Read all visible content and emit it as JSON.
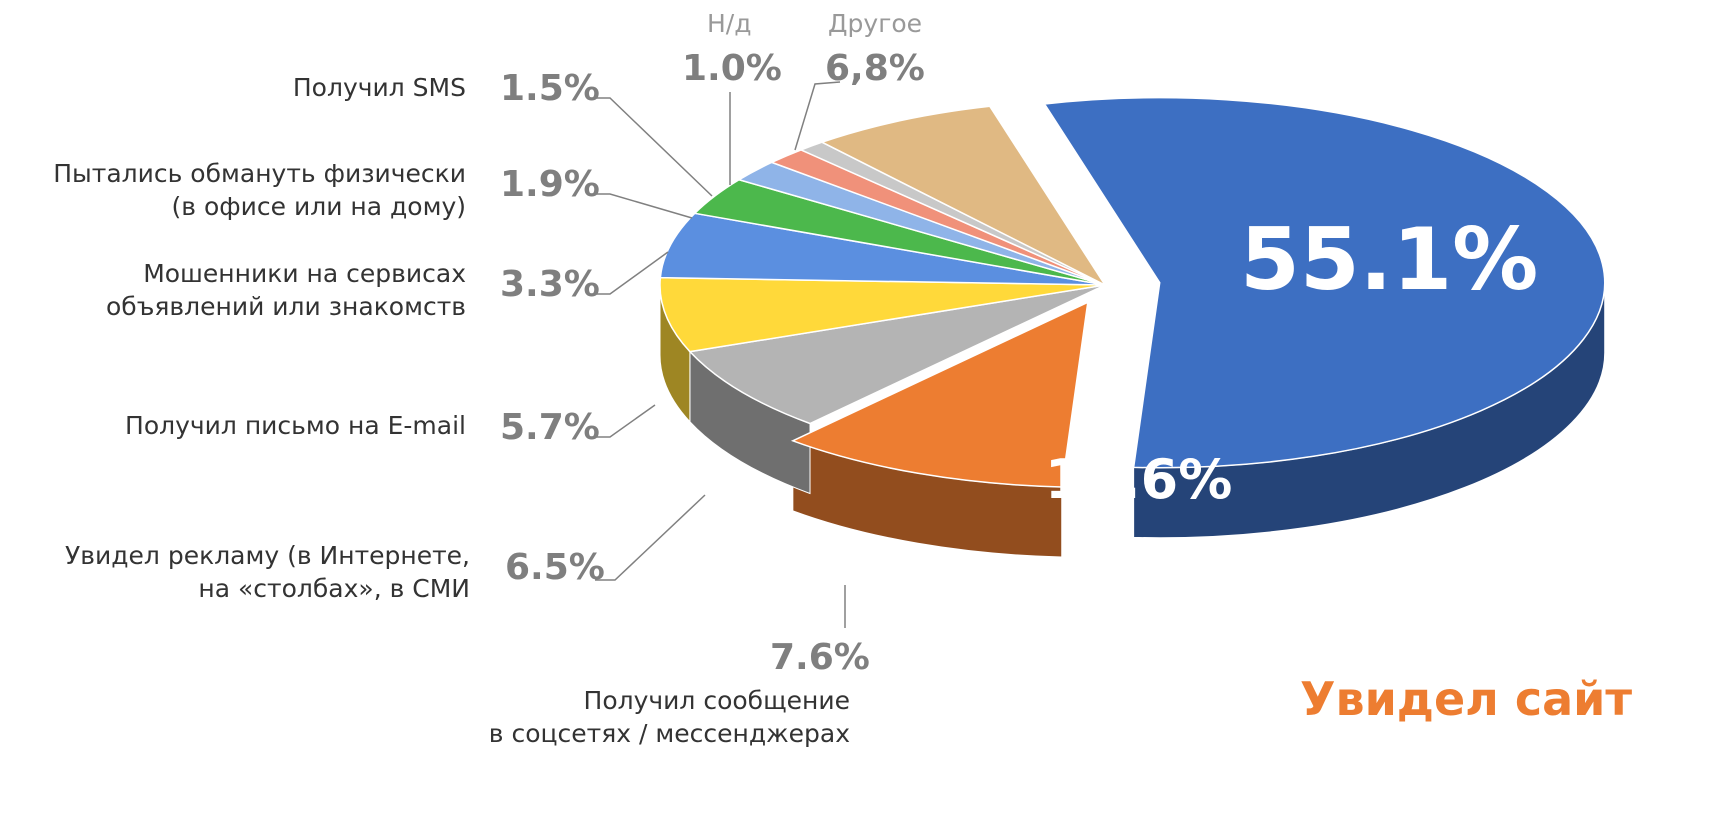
{
  "chart_data": {
    "type": "pie",
    "categories": [
      null,
      "Увидел сайт",
      "Получил сообщение\nв соцсетях / мессенджерах",
      "Увидел рекламу (в Интернете,\nна «столбах», в СМИ",
      "Получил письмо на E-mail",
      "Мошенники на сервисах\nобъявлений или знакомств",
      "Пытались обмануть физически\n(в офисе или на дому)",
      "Получил SMS",
      "Н/д",
      "Другое"
    ],
    "values": [
      55.1,
      10.6,
      7.6,
      6.5,
      5.7,
      3.3,
      1.9,
      1.5,
      1.0,
      6.8
    ],
    "value_labels": [
      "55.1%",
      "10.6%",
      "7.6%",
      "6.5%",
      "5.7%",
      "3.3%",
      "1.9%",
      "1.5%",
      "1.0%",
      "6,8%"
    ],
    "colors": [
      "#3d6fc2",
      "#ed7d31",
      "#b4b4b4",
      "#ffd93a",
      "#5b8fe0",
      "#4cb84c",
      "#8fb4e8",
      "#f0917a",
      "#c8c8c8",
      "#e0b983"
    ]
  }
}
